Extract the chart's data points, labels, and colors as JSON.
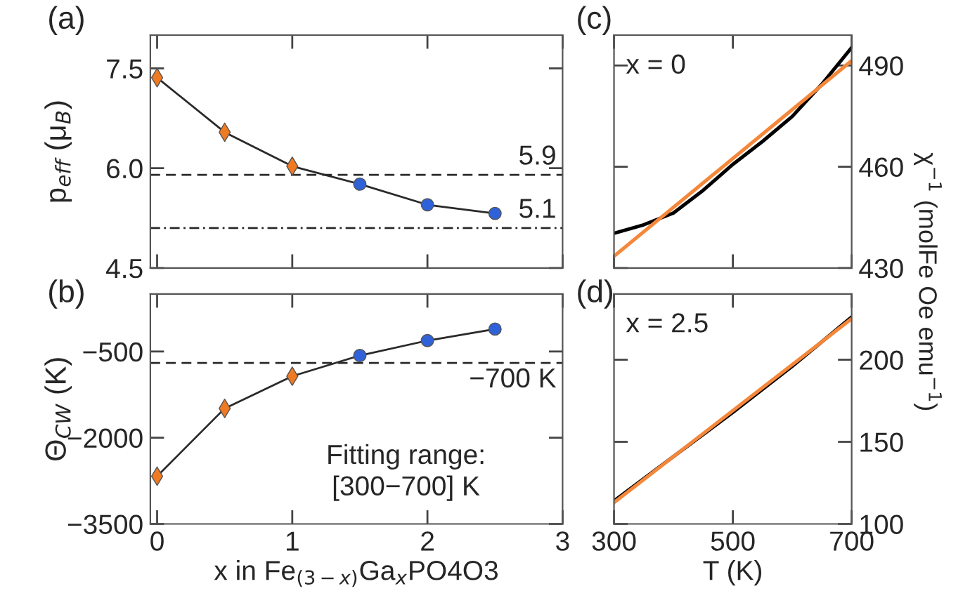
{
  "chart_data": [
    {
      "type": "line",
      "title": "(a)",
      "ylabel": "p$_{eff}$ (μ$_{B}$)",
      "xlim": [
        -0.05,
        3
      ],
      "xticks": [
        0,
        1,
        2,
        3
      ],
      "ylim": [
        4.5,
        8.0
      ],
      "yticks": [
        4.5,
        {
          "value": 6,
          "label": "6.0"
        },
        7.5
      ],
      "tick_labels": "y",
      "grid": false,
      "legend": false,
      "series": [
        {
          "color": "#2a2a2a",
          "marker": "none",
          "x": [
            0,
            0.5,
            1,
            1.5,
            2,
            2.5
          ],
          "values": [
            7.36,
            6.54,
            6.03,
            5.76,
            5.45,
            5.32
          ]
        },
        {
          "type": "scatter",
          "color": "#f07a22",
          "marker": "diamond",
          "x": [
            0,
            0.5,
            1
          ],
          "values": [
            7.36,
            6.54,
            6.03
          ]
        },
        {
          "type": "scatter",
          "color": "#2f62d8",
          "marker": "circle",
          "x": [
            1.5,
            2,
            2.5
          ],
          "values": [
            5.76,
            5.45,
            5.32
          ]
        }
      ],
      "ref_lines": [
        {
          "axis": "y",
          "value": 5.9,
          "label": "5.9",
          "color": "#2a2a2a",
          "line_style": "dashed"
        },
        {
          "axis": "y",
          "value": 5.1,
          "label": "5.1",
          "color": "#2a2a2a",
          "line_style": "dashdot"
        }
      ]
    },
    {
      "type": "line",
      "title": "(b)",
      "xlabel": "x in Fe$_{(3−x)}$Ga$_{x}$PO4O3",
      "ylabel": "Θ$_{CW}$ (K)",
      "xlim": [
        -0.05,
        3
      ],
      "xticks": [
        0,
        1,
        2,
        3
      ],
      "ylim": [
        -3500,
        500
      ],
      "yticks": [
        {
          "value": -3500,
          "label": "−3500"
        },
        {
          "value": -2000,
          "label": "−2000"
        },
        {
          "value": -500,
          "label": "−500"
        }
      ],
      "grid": false,
      "legend": false,
      "series": [
        {
          "color": "#2a2a2a",
          "marker": "none",
          "x": [
            0,
            0.5,
            1,
            1.5,
            2,
            2.5
          ],
          "values": [
            -2670,
            -1490,
            -930,
            -570,
            -310,
            -110
          ]
        },
        {
          "type": "scatter",
          "color": "#f07a22",
          "marker": "diamond",
          "x": [
            0,
            0.5,
            1
          ],
          "values": [
            -2670,
            -1490,
            -930
          ]
        },
        {
          "type": "scatter",
          "color": "#2f62d8",
          "marker": "circle",
          "x": [
            1.5,
            2,
            2.5
          ],
          "values": [
            -570,
            -310,
            -110
          ]
        }
      ],
      "ref_lines": [
        {
          "axis": "y",
          "value": -700,
          "label": "−700 K",
          "color": "#2a2a2a",
          "line_style": "dashed"
        }
      ],
      "annotations": [
        "Fitting range:\n[300−700] K"
      ]
    },
    {
      "type": "line",
      "title": "(c)",
      "ylabel": "χ$^{−1}$ (molFe Oe emu$^{−1}$)",
      "xlim": [
        300,
        700
      ],
      "xticks": [
        300,
        500,
        700
      ],
      "ylim": [
        430,
        499
      ],
      "yticks": [
        430,
        460,
        490
      ],
      "tick_labels": "y",
      "grid": false,
      "legend": false,
      "series": [
        {
          "color": "#000000",
          "marker": "none",
          "x": [
            300,
            350,
            400,
            450,
            500,
            550,
            600,
            650,
            700
          ],
          "values": [
            440.3,
            442.8,
            446.3,
            453,
            460.7,
            467.5,
            474.9,
            484.5,
            495.3
          ]
        },
        {
          "color": "#f5873a",
          "marker": "none",
          "x": [
            300,
            700
          ],
          "values": [
            433.5,
            491.4
          ]
        }
      ],
      "annotations": [
        "x = 0"
      ]
    },
    {
      "type": "line",
      "title": "(d)",
      "xlabel": "T (K)",
      "xlim": [
        300,
        700
      ],
      "xticks": [
        300,
        500,
        700
      ],
      "ylim": [
        100,
        240
      ],
      "yticks": [
        100,
        150,
        200
      ],
      "grid": false,
      "legend": false,
      "series": [
        {
          "color": "#000000",
          "marker": "none",
          "x": [
            300,
            400,
            500,
            600,
            700
          ],
          "values": [
            114,
            141,
            168,
            196,
            226
          ]
        },
        {
          "color": "#f5873a",
          "marker": "none",
          "x": [
            300,
            700
          ],
          "values": [
            113,
            225
          ]
        }
      ],
      "annotations": [
        "x = 2.5"
      ]
    }
  ]
}
